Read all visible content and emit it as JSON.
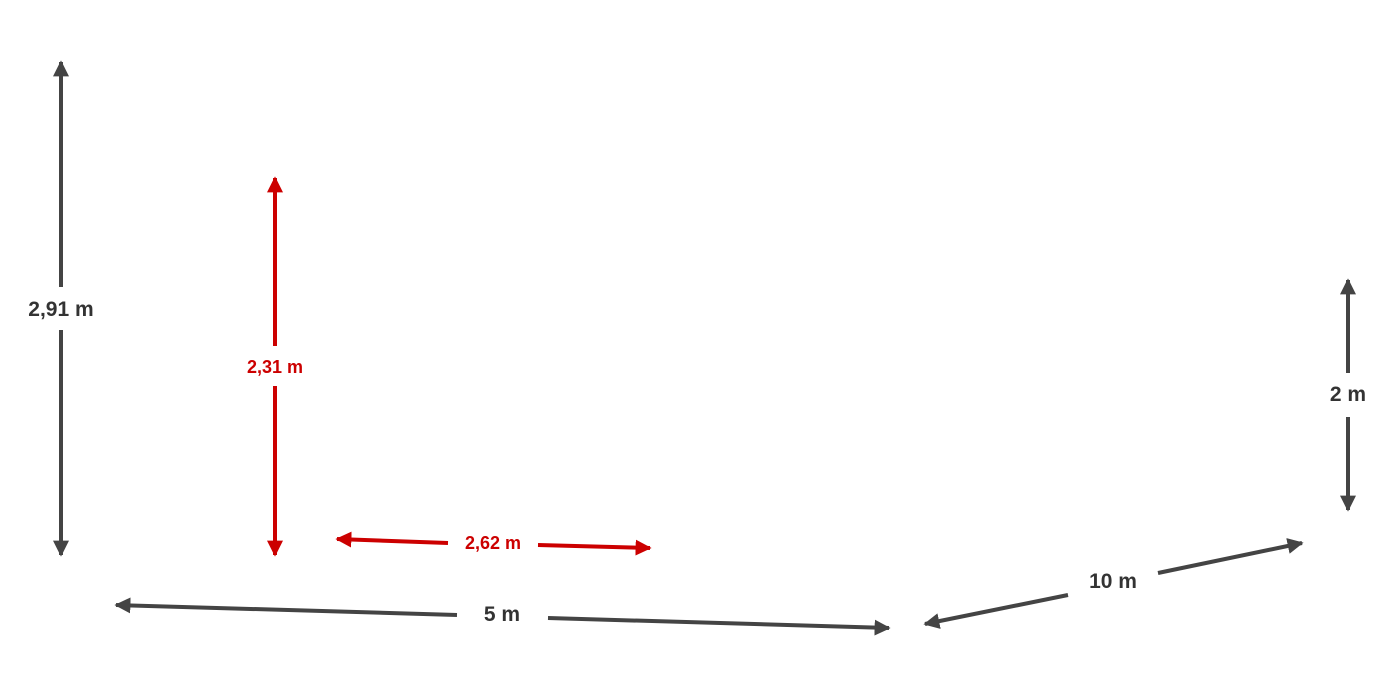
{
  "colors": {
    "dark": "#444444",
    "accent_red": "#cc0000",
    "background": "#ffffff"
  },
  "dimensions": {
    "wall_height": {
      "label": "2,91 m",
      "color": "dark",
      "icon": "double-arrow-icon"
    },
    "door_height": {
      "label": "2,31 m",
      "color": "accent_red",
      "icon": "double-arrow-icon"
    },
    "door_width": {
      "label": "2,62 m",
      "color": "accent_red",
      "icon": "double-arrow-icon"
    },
    "front_width": {
      "label": "5 m",
      "color": "dark",
      "icon": "double-arrow-icon"
    },
    "side_depth": {
      "label": "10 m",
      "color": "dark",
      "icon": "double-arrow-icon"
    },
    "rear_height": {
      "label": "2 m",
      "color": "dark",
      "icon": "double-arrow-icon"
    }
  }
}
